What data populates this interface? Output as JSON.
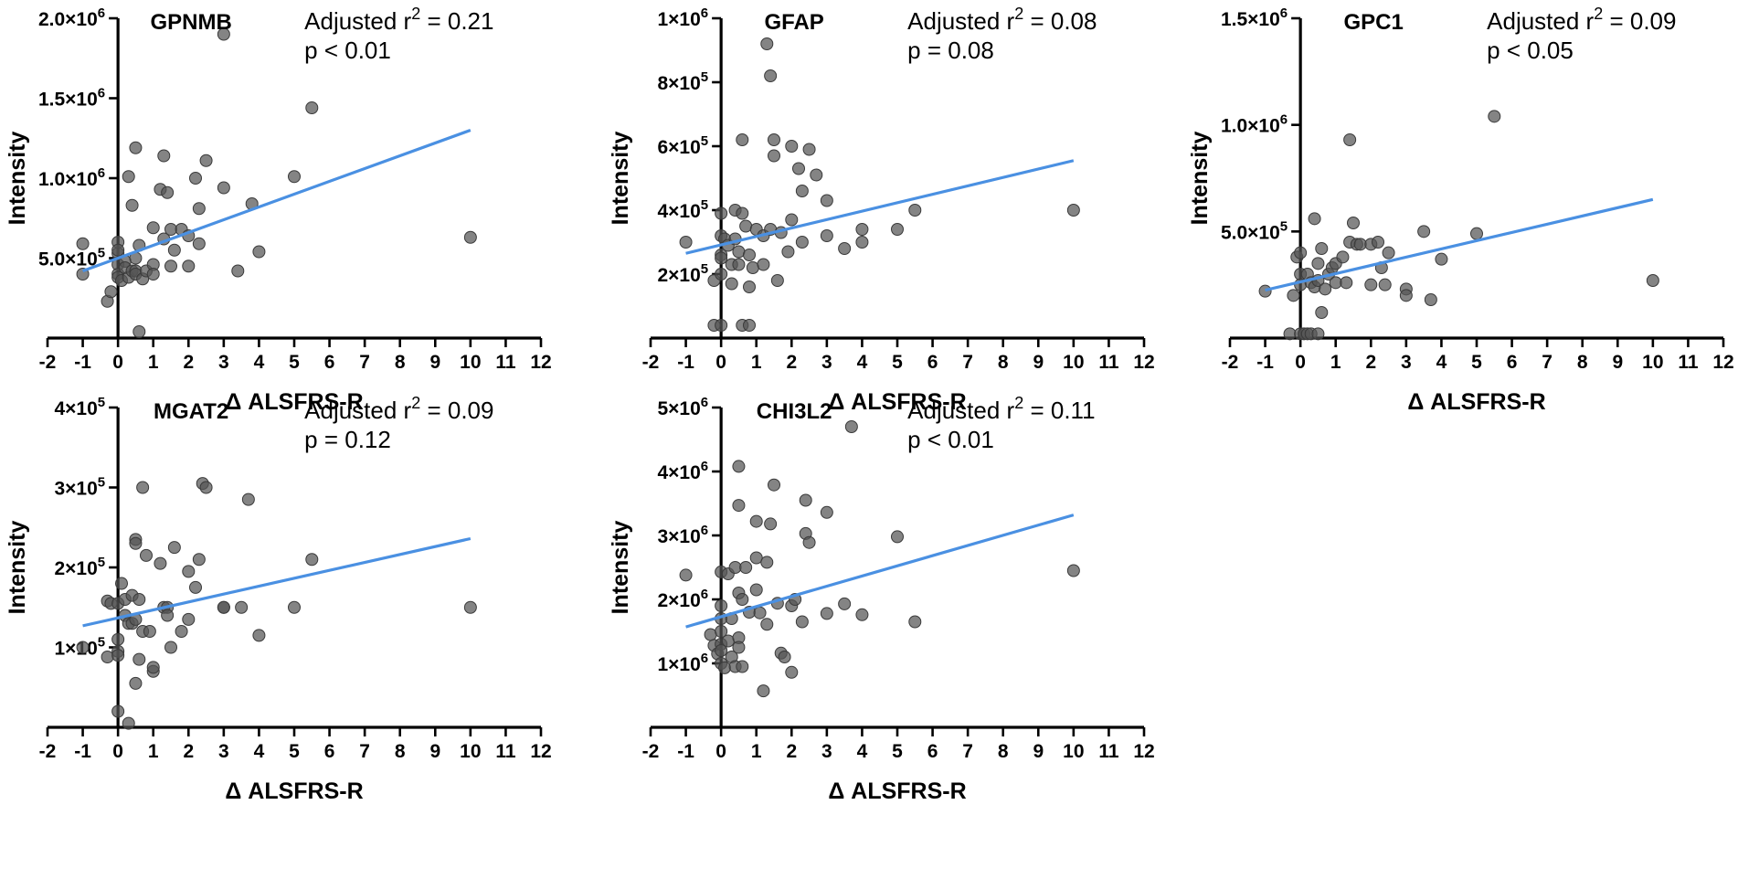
{
  "chart_data": [
    {
      "type": "scatter",
      "title": "GPNMB",
      "annotation": {
        "r2_prefix": "Adjusted r",
        "r2_sup": "2",
        "r2_value": " = 0.21",
        "p": "p < 0.01"
      },
      "xlabel": "Δ ALSFRS-R",
      "ylabel": "Intensity",
      "xlim": [
        -2,
        12
      ],
      "ylim": [
        0,
        2000000
      ],
      "xticks": [
        "-2",
        "-1",
        "0",
        "1",
        "2",
        "3",
        "4",
        "5",
        "6",
        "7",
        "8",
        "9",
        "10",
        "11",
        "12"
      ],
      "yticks": [
        {
          "v": 500000,
          "m": "5.0",
          "e": "5"
        },
        {
          "v": 1000000,
          "m": "1.0",
          "e": "6"
        },
        {
          "v": 1500000,
          "m": "1.5",
          "e": "6"
        },
        {
          "v": 2000000,
          "m": "2.0",
          "e": "6"
        }
      ],
      "fit": {
        "x": [
          -1,
          10
        ],
        "y": [
          420000,
          1300000
        ]
      },
      "points": [
        [
          -1,
          590000
        ],
        [
          -1,
          400000
        ],
        [
          -0.3,
          230000
        ],
        [
          -0.2,
          290000
        ],
        [
          0,
          530000
        ],
        [
          0,
          460000
        ],
        [
          0,
          400000
        ],
        [
          0,
          380000
        ],
        [
          0,
          600000
        ],
        [
          0,
          550000
        ],
        [
          0.1,
          360000
        ],
        [
          0.2,
          480000
        ],
        [
          0.2,
          440000
        ],
        [
          0.3,
          1010000
        ],
        [
          0.3,
          380000
        ],
        [
          0.4,
          830000
        ],
        [
          0.4,
          420000
        ],
        [
          0.5,
          1190000
        ],
        [
          0.5,
          500000
        ],
        [
          0.5,
          420000
        ],
        [
          0.5,
          400000
        ],
        [
          0.6,
          40000
        ],
        [
          0.6,
          580000
        ],
        [
          0.7,
          370000
        ],
        [
          0.8,
          420000
        ],
        [
          1,
          690000
        ],
        [
          1,
          460000
        ],
        [
          1,
          400000
        ],
        [
          1.2,
          930000
        ],
        [
          1.3,
          620000
        ],
        [
          1.3,
          1140000
        ],
        [
          1.4,
          910000
        ],
        [
          1.5,
          450000
        ],
        [
          1.5,
          680000
        ],
        [
          1.6,
          550000
        ],
        [
          1.8,
          680000
        ],
        [
          2,
          640000
        ],
        [
          2,
          450000
        ],
        [
          2.2,
          1000000
        ],
        [
          2.3,
          810000
        ],
        [
          2.3,
          590000
        ],
        [
          2.5,
          1110000
        ],
        [
          3,
          1900000
        ],
        [
          3,
          940000
        ],
        [
          3.4,
          420000
        ],
        [
          3.8,
          840000
        ],
        [
          4,
          540000
        ],
        [
          5,
          1010000
        ],
        [
          5.5,
          1440000
        ],
        [
          10,
          630000
        ]
      ],
      "panel": {
        "x0": 45,
        "y0": 22,
        "w": 445,
        "h": 280,
        "yAxisX": 0
      }
    },
    {
      "type": "scatter",
      "title": "GFAP",
      "annotation": {
        "r2_prefix": "Adjusted r",
        "r2_sup": "2",
        "r2_value": " = 0.08",
        "p": "p = 0.08"
      },
      "xlabel": "Δ ALSFRS-R",
      "ylabel": "Intensity",
      "xlim": [
        -2,
        12
      ],
      "ylim": [
        0,
        1000000
      ],
      "xticks": [
        "-2",
        "-1",
        "0",
        "1",
        "2",
        "3",
        "4",
        "5",
        "6",
        "7",
        "8",
        "9",
        "10",
        "11",
        "12"
      ],
      "yticks": [
        {
          "v": 200000,
          "m": "2",
          "e": "5"
        },
        {
          "v": 400000,
          "m": "4",
          "e": "5"
        },
        {
          "v": 600000,
          "m": "6",
          "e": "5"
        },
        {
          "v": 800000,
          "m": "8",
          "e": "5"
        },
        {
          "v": 1000000,
          "m": "1",
          "e": "6"
        }
      ],
      "fit": {
        "x": [
          -1,
          10
        ],
        "y": [
          265000,
          555000
        ]
      },
      "points": [
        [
          -1,
          300000
        ],
        [
          -0.2,
          180000
        ],
        [
          -0.2,
          40000
        ],
        [
          0,
          390000
        ],
        [
          0,
          320000
        ],
        [
          0,
          260000
        ],
        [
          0,
          200000
        ],
        [
          0,
          40000
        ],
        [
          0,
          250000
        ],
        [
          0.1,
          310000
        ],
        [
          0.2,
          290000
        ],
        [
          0.3,
          230000
        ],
        [
          0.3,
          170000
        ],
        [
          0.4,
          400000
        ],
        [
          0.4,
          310000
        ],
        [
          0.5,
          270000
        ],
        [
          0.5,
          230000
        ],
        [
          0.6,
          390000
        ],
        [
          0.6,
          40000
        ],
        [
          0.6,
          620000
        ],
        [
          0.7,
          350000
        ],
        [
          0.8,
          260000
        ],
        [
          0.8,
          40000
        ],
        [
          0.8,
          160000
        ],
        [
          0.9,
          220000
        ],
        [
          1,
          340000
        ],
        [
          1.2,
          230000
        ],
        [
          1.2,
          320000
        ],
        [
          1.3,
          920000
        ],
        [
          1.4,
          820000
        ],
        [
          1.4,
          340000
        ],
        [
          1.5,
          570000
        ],
        [
          1.5,
          620000
        ],
        [
          1.6,
          180000
        ],
        [
          1.7,
          330000
        ],
        [
          1.9,
          270000
        ],
        [
          2,
          600000
        ],
        [
          2,
          370000
        ],
        [
          2.2,
          530000
        ],
        [
          2.3,
          460000
        ],
        [
          2.3,
          300000
        ],
        [
          2.5,
          590000
        ],
        [
          2.7,
          510000
        ],
        [
          3,
          320000
        ],
        [
          3,
          430000
        ],
        [
          3.5,
          280000
        ],
        [
          4,
          300000
        ],
        [
          4,
          340000
        ],
        [
          5,
          340000
        ],
        [
          5.5,
          400000
        ],
        [
          10,
          400000
        ]
      ],
      "panel": {
        "x0": 586,
        "y0": 22,
        "w": 445,
        "h": 280,
        "yAxisX": 0
      }
    },
    {
      "type": "scatter",
      "title": "GPC1",
      "annotation": {
        "r2_prefix": "Adjusted r",
        "r2_sup": "2",
        "r2_value": " = 0.09",
        "p": "p < 0.05"
      },
      "xlabel": "Δ ALSFRS-R",
      "ylabel": "Intensity",
      "xlim": [
        -2,
        12
      ],
      "ylim": [
        0,
        1500000
      ],
      "xticks": [
        "-2",
        "-1",
        "0",
        "1",
        "2",
        "3",
        "4",
        "5",
        "6",
        "7",
        "8",
        "9",
        "10",
        "11",
        "12"
      ],
      "yticks": [
        {
          "v": 500000,
          "m": "5.0",
          "e": "5"
        },
        {
          "v": 1000000,
          "m": "1.0",
          "e": "6"
        },
        {
          "v": 1500000,
          "m": "1.5",
          "e": "6"
        }
      ],
      "fit": {
        "x": [
          -1,
          10
        ],
        "y": [
          225000,
          650000
        ]
      },
      "points": [
        [
          -1,
          220000
        ],
        [
          -0.3,
          20000
        ],
        [
          -0.2,
          200000
        ],
        [
          -0.1,
          380000
        ],
        [
          0,
          20000
        ],
        [
          0,
          400000
        ],
        [
          0,
          300000
        ],
        [
          0,
          250000
        ],
        [
          0.1,
          20000
        ],
        [
          0.2,
          300000
        ],
        [
          0.2,
          20000
        ],
        [
          0.3,
          260000
        ],
        [
          0.3,
          20000
        ],
        [
          0.4,
          560000
        ],
        [
          0.4,
          240000
        ],
        [
          0.5,
          350000
        ],
        [
          0.5,
          20000
        ],
        [
          0.5,
          270000
        ],
        [
          0.6,
          120000
        ],
        [
          0.6,
          420000
        ],
        [
          0.7,
          230000
        ],
        [
          0.8,
          300000
        ],
        [
          0.9,
          330000
        ],
        [
          1,
          260000
        ],
        [
          1,
          350000
        ],
        [
          1.2,
          380000
        ],
        [
          1.3,
          260000
        ],
        [
          1.4,
          930000
        ],
        [
          1.4,
          450000
        ],
        [
          1.5,
          540000
        ],
        [
          1.6,
          440000
        ],
        [
          1.7,
          440000
        ],
        [
          2,
          250000
        ],
        [
          2,
          440000
        ],
        [
          2.2,
          450000
        ],
        [
          2.3,
          330000
        ],
        [
          2.4,
          250000
        ],
        [
          2.5,
          400000
        ],
        [
          3,
          230000
        ],
        [
          3,
          200000
        ],
        [
          3.5,
          500000
        ],
        [
          3.7,
          180000
        ],
        [
          4,
          370000
        ],
        [
          5,
          490000
        ],
        [
          5.5,
          1040000
        ],
        [
          10,
          270000
        ]
      ],
      "panel": {
        "x0": 1107,
        "y0": 22,
        "w": 445,
        "h": 280,
        "yAxisX": 0
      }
    },
    {
      "type": "scatter",
      "title": "MGAT2",
      "annotation": {
        "r2_prefix": "Adjusted r",
        "r2_sup": "2",
        "r2_value": " = 0.09",
        "p": "p = 0.12"
      },
      "xlabel": "Δ ALSFRS-R",
      "ylabel": "Intensity",
      "xlim": [
        -2,
        12
      ],
      "ylim": [
        0,
        400000
      ],
      "xticks": [
        "-2",
        "-1",
        "0",
        "1",
        "2",
        "3",
        "4",
        "5",
        "6",
        "7",
        "8",
        "9",
        "10",
        "11",
        "12"
      ],
      "yticks": [
        {
          "v": 100000,
          "m": "1",
          "e": "5"
        },
        {
          "v": 200000,
          "m": "2",
          "e": "5"
        },
        {
          "v": 300000,
          "m": "3",
          "e": "5"
        },
        {
          "v": 400000,
          "m": "4",
          "e": "5"
        }
      ],
      "fit": {
        "x": [
          -1,
          10
        ],
        "y": [
          127000,
          236000
        ]
      },
      "points": [
        [
          -1,
          100000
        ],
        [
          -0.3,
          88000
        ],
        [
          -0.3,
          158000
        ],
        [
          -0.2,
          155000
        ],
        [
          0,
          20000
        ],
        [
          0,
          110000
        ],
        [
          0,
          95000
        ],
        [
          0,
          90000
        ],
        [
          0,
          155000
        ],
        [
          0.1,
          180000
        ],
        [
          0.2,
          160000
        ],
        [
          0.2,
          140000
        ],
        [
          0.3,
          130000
        ],
        [
          0.3,
          5000
        ],
        [
          0.4,
          165000
        ],
        [
          0.4,
          130000
        ],
        [
          0.5,
          235000
        ],
        [
          0.5,
          230000
        ],
        [
          0.5,
          135000
        ],
        [
          0.5,
          55000
        ],
        [
          0.6,
          160000
        ],
        [
          0.6,
          85000
        ],
        [
          0.7,
          300000
        ],
        [
          0.7,
          120000
        ],
        [
          0.8,
          215000
        ],
        [
          0.9,
          120000
        ],
        [
          1,
          70000
        ],
        [
          1,
          75000
        ],
        [
          1.2,
          205000
        ],
        [
          1.3,
          150000
        ],
        [
          1.4,
          150000
        ],
        [
          1.4,
          140000
        ],
        [
          1.5,
          100000
        ],
        [
          1.6,
          225000
        ],
        [
          1.8,
          120000
        ],
        [
          2,
          135000
        ],
        [
          2,
          195000
        ],
        [
          2.2,
          175000
        ],
        [
          2.3,
          210000
        ],
        [
          2.4,
          305000
        ],
        [
          2.5,
          300000
        ],
        [
          3,
          150000
        ],
        [
          3,
          150000
        ],
        [
          3.5,
          150000
        ],
        [
          3.7,
          285000
        ],
        [
          4,
          115000
        ],
        [
          5,
          150000
        ],
        [
          5.5,
          210000
        ],
        [
          10,
          150000
        ]
      ],
      "panel": {
        "x0": 45,
        "y0": 440,
        "w": 445,
        "h": 280,
        "yAxisX": 0
      }
    },
    {
      "type": "scatter",
      "title": "CHI3L2",
      "annotation": {
        "r2_prefix": "Adjusted r",
        "r2_sup": "2",
        "r2_value": " = 0.11",
        "p": "p < 0.01"
      },
      "xlabel": "Δ ALSFRS-R",
      "ylabel": "Intensity",
      "xlim": [
        -2,
        12
      ],
      "ylim": [
        0,
        5000000
      ],
      "xticks": [
        "-2",
        "-1",
        "0",
        "1",
        "2",
        "3",
        "4",
        "5",
        "6",
        "7",
        "8",
        "9",
        "10",
        "11",
        "12"
      ],
      "yticks": [
        {
          "v": 1000000,
          "m": "1",
          "e": "6"
        },
        {
          "v": 2000000,
          "m": "2",
          "e": "6"
        },
        {
          "v": 3000000,
          "m": "3",
          "e": "6"
        },
        {
          "v": 4000000,
          "m": "4",
          "e": "6"
        },
        {
          "v": 5000000,
          "m": "5",
          "e": "6"
        }
      ],
      "fit": {
        "x": [
          -1,
          10
        ],
        "y": [
          1570000,
          3320000
        ]
      },
      "points": [
        [
          -1,
          2380000
        ],
        [
          -0.3,
          1450000
        ],
        [
          -0.2,
          1280000
        ],
        [
          -0.1,
          1150000
        ],
        [
          0,
          2430000
        ],
        [
          0,
          1900000
        ],
        [
          0,
          1700000
        ],
        [
          0,
          1500000
        ],
        [
          0,
          1300000
        ],
        [
          0,
          1200000
        ],
        [
          0,
          1000000
        ],
        [
          0.1,
          930000
        ],
        [
          0.2,
          2400000
        ],
        [
          0.2,
          1350000
        ],
        [
          0.3,
          1100000
        ],
        [
          0.3,
          1700000
        ],
        [
          0.4,
          2500000
        ],
        [
          0.4,
          950000
        ],
        [
          0.5,
          4080000
        ],
        [
          0.5,
          3470000
        ],
        [
          0.5,
          2100000
        ],
        [
          0.5,
          1400000
        ],
        [
          0.5,
          1250000
        ],
        [
          0.6,
          2000000
        ],
        [
          0.6,
          950000
        ],
        [
          0.7,
          2500000
        ],
        [
          0.8,
          1800000
        ],
        [
          1,
          3220000
        ],
        [
          1,
          2650000
        ],
        [
          1,
          2150000
        ],
        [
          1.1,
          1790000
        ],
        [
          1.2,
          570000
        ],
        [
          1.3,
          2580000
        ],
        [
          1.3,
          1610000
        ],
        [
          1.4,
          3180000
        ],
        [
          1.5,
          3790000
        ],
        [
          1.6,
          1940000
        ],
        [
          1.7,
          1160000
        ],
        [
          1.8,
          1100000
        ],
        [
          2,
          860000
        ],
        [
          2,
          1900000
        ],
        [
          2.1,
          2000000
        ],
        [
          2.3,
          1650000
        ],
        [
          2.4,
          3550000
        ],
        [
          2.4,
          3030000
        ],
        [
          2.5,
          2890000
        ],
        [
          3,
          1780000
        ],
        [
          3,
          3360000
        ],
        [
          3.5,
          1930000
        ],
        [
          3.7,
          4700000
        ],
        [
          4,
          1760000
        ],
        [
          5,
          2980000
        ],
        [
          5.5,
          1650000
        ],
        [
          10,
          2450000
        ]
      ],
      "panel": {
        "x0": 586,
        "y0": 440,
        "w": 445,
        "h": 280,
        "yAxisX": 0
      }
    }
  ]
}
